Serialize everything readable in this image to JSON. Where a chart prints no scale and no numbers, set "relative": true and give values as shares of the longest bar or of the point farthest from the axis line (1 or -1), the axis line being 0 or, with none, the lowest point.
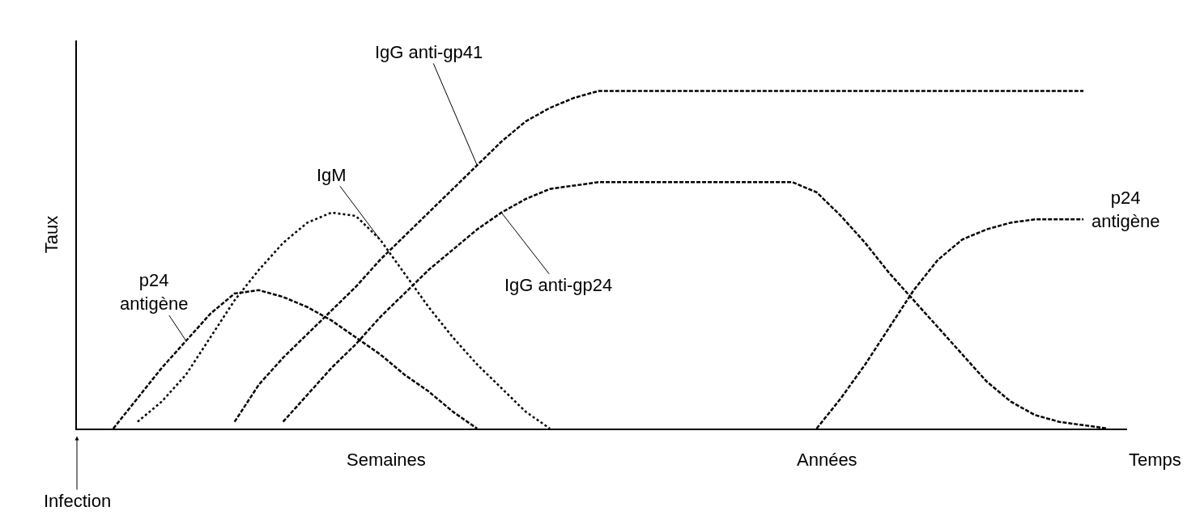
{
  "chart_data": {
    "type": "line",
    "relative": true,
    "xlabel": "Temps",
    "ylabel": "Taux",
    "legend": false,
    "marker": "none",
    "categories": [
      null,
      null,
      null,
      null,
      null,
      null,
      null,
      null,
      null,
      null,
      null,
      null,
      null,
      null,
      null,
      null,
      null,
      null,
      null,
      null,
      null,
      null,
      null,
      null,
      null,
      null,
      null,
      null,
      null,
      null,
      null,
      null,
      null,
      null,
      null,
      null,
      null,
      null,
      null,
      null,
      null,
      null,
      null
    ],
    "series": [
      {
        "name": "p24 antigène",
        "color": "#000000",
        "line_style": "dashed",
        "values": [
          null,
          0,
          0.09,
          0.18,
          0.26,
          0.34,
          0.4,
          0.41,
          0.39,
          0.36,
          0.32,
          0.27,
          0.22,
          0.16,
          0.11,
          0.05,
          0,
          null,
          null,
          null,
          null,
          null,
          null,
          null,
          null,
          null,
          null,
          null,
          null,
          null,
          null,
          null,
          null,
          null,
          null,
          null,
          null,
          null,
          null,
          null,
          null,
          null,
          null
        ]
      },
      {
        "name": "IgM",
        "color": "#000000",
        "line_style": "dotted",
        "values": [
          null,
          null,
          0.02,
          0.08,
          0.16,
          0.27,
          0.38,
          0.47,
          0.55,
          0.61,
          0.64,
          0.63,
          0.56,
          0.46,
          0.36,
          0.27,
          0.19,
          0.12,
          0.05,
          0,
          null,
          null,
          null,
          null,
          null,
          null,
          null,
          null,
          null,
          null,
          null,
          null,
          null,
          null,
          null,
          null,
          null,
          null,
          null,
          null,
          null,
          null,
          null
        ]
      },
      {
        "name": "IgG anti-gp41",
        "color": "#000000",
        "line_style": "dashed",
        "values": [
          null,
          null,
          null,
          null,
          null,
          null,
          0.02,
          0.13,
          0.21,
          0.28,
          0.35,
          0.42,
          0.5,
          0.57,
          0.64,
          0.71,
          0.78,
          0.85,
          0.91,
          0.95,
          0.98,
          1,
          1,
          1,
          1,
          1,
          1,
          1,
          1,
          1,
          1,
          1,
          1,
          1,
          1,
          1,
          1,
          1,
          1,
          1,
          1,
          1,
          null
        ]
      },
      {
        "name": "IgG anti-gp24",
        "color": "#000000",
        "line_style": "dashed",
        "values": [
          null,
          null,
          null,
          null,
          null,
          null,
          null,
          null,
          0.02,
          0.1,
          0.18,
          0.25,
          0.33,
          0.4,
          0.47,
          0.53,
          0.59,
          0.64,
          0.68,
          0.71,
          0.72,
          0.73,
          0.73,
          0.73,
          0.73,
          0.73,
          0.73,
          0.73,
          0.73,
          0.73,
          0.7,
          0.63,
          0.55,
          0.46,
          0.38,
          0.3,
          0.22,
          0.14,
          0.08,
          0.04,
          0.02,
          0.01,
          0
        ]
      },
      {
        "name": "p24 antigène",
        "color": "#000000",
        "line_style": "dashed",
        "values": [
          null,
          null,
          null,
          null,
          null,
          null,
          null,
          null,
          null,
          null,
          null,
          null,
          null,
          null,
          null,
          null,
          null,
          null,
          null,
          null,
          null,
          null,
          null,
          null,
          null,
          null,
          null,
          null,
          null,
          null,
          0,
          0.09,
          0.19,
          0.3,
          0.41,
          0.5,
          0.56,
          0.59,
          0.61,
          0.62,
          0.62,
          0.62,
          null
        ]
      }
    ],
    "annotations": [
      "Semaines",
      "Années",
      "Infection"
    ]
  }
}
